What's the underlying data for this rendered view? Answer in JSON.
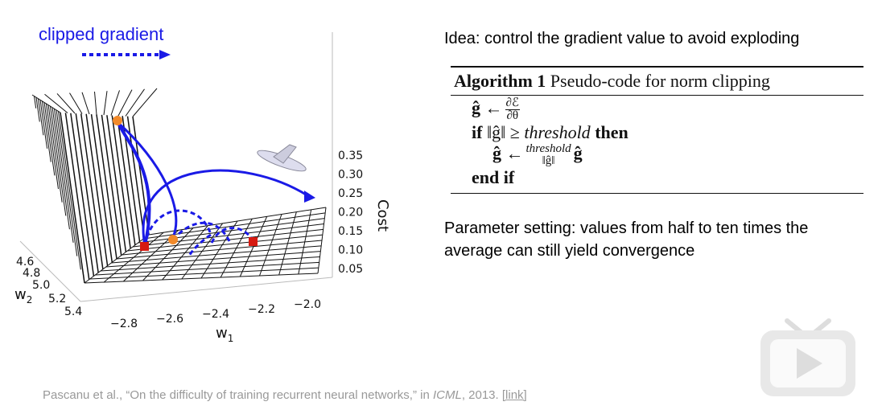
{
  "figure": {
    "legend_label": "clipped gradient",
    "z_axis_label": "Cost",
    "z_ticks": [
      "0.35",
      "0.30",
      "0.25",
      "0.20",
      "0.15",
      "0.10",
      "0.05"
    ],
    "x_axis_label": "w",
    "x_axis_subscript": "1",
    "x_ticks": [
      "−2.8",
      "−2.6",
      "−2.4",
      "−2.2",
      "−2.0"
    ],
    "y_axis_label": "w",
    "y_axis_subscript": "2",
    "y_ticks": [
      "4.6",
      "4.8",
      "5.0",
      "5.2",
      "5.4"
    ]
  },
  "idea": "Idea: control the gradient value to avoid exploding",
  "algorithm": {
    "title": "Algorithm 1",
    "caption": "Pseudo-code for norm clipping",
    "line1": {
      "lhs": "ĝ ←",
      "numerator": "∂ℰ",
      "denominator": "∂θ"
    },
    "line2": {
      "keyword_if": "if",
      "math": "‖ĝ‖ ≥",
      "variable": "threshold",
      "keyword_then": "then"
    },
    "line3": {
      "lhs": "ĝ ←",
      "numerator": "threshold",
      "denominator": "‖ĝ‖",
      "rhs": "ĝ"
    },
    "line4": "end if"
  },
  "parameter_note": "Parameter setting: values from half to ten times the average can still yield convergence",
  "citation": {
    "text": "Pascanu et al., “On the difficulty of training recurrent neural networks,” in ",
    "venue": "ICML",
    "year": ", 2013. ",
    "link": "[link]"
  }
}
